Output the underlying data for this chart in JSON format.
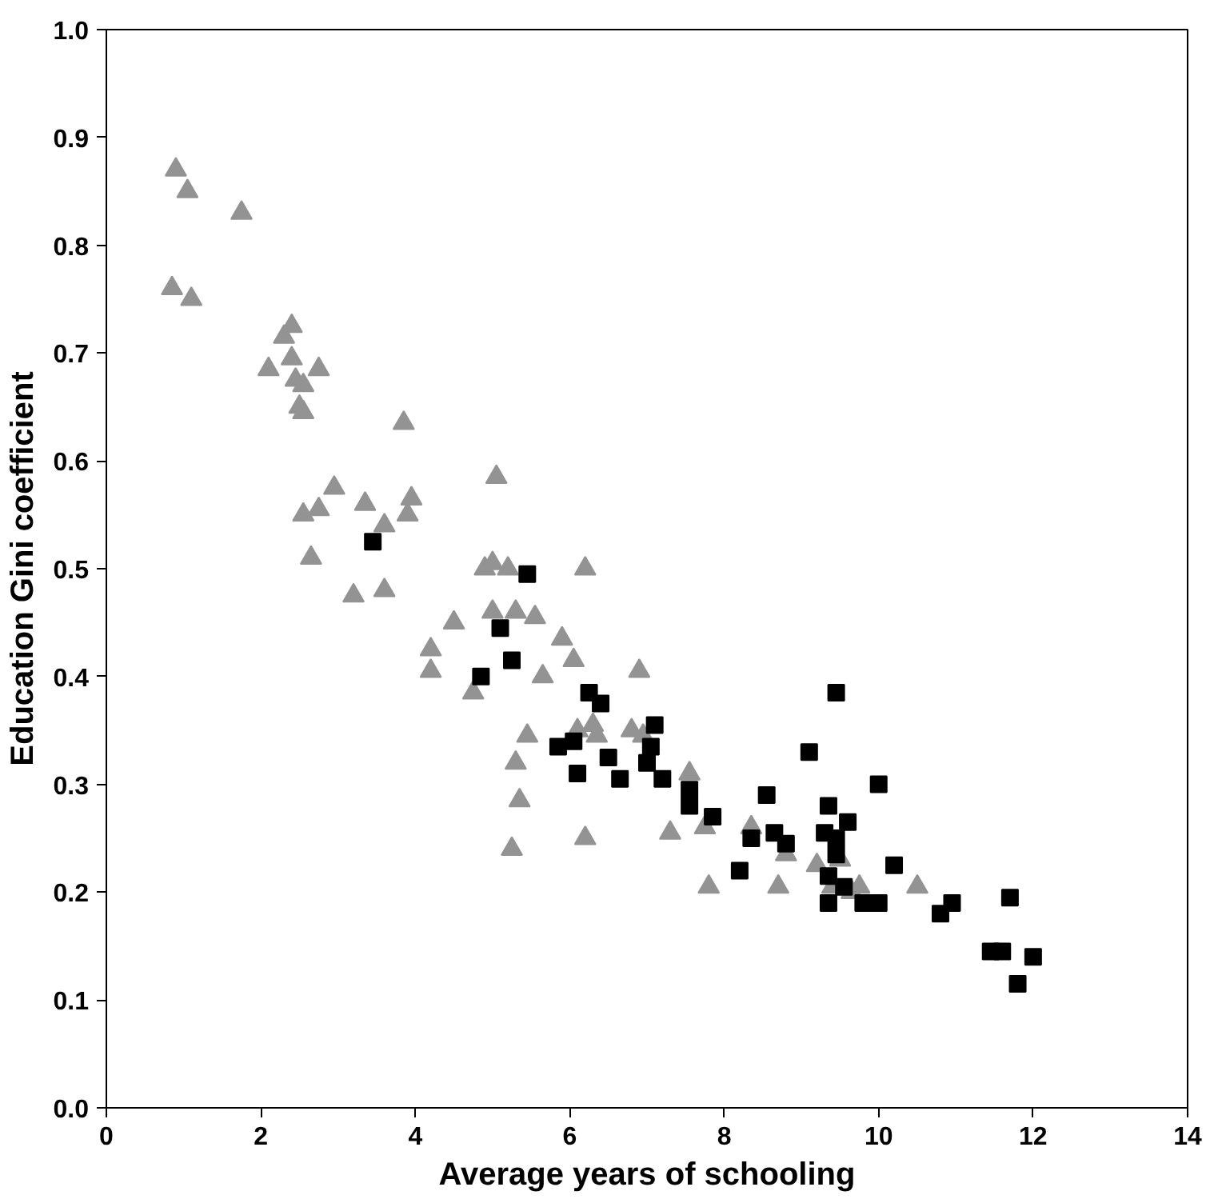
{
  "chart_data": {
    "type": "scatter",
    "xlabel": "Average years of schooling",
    "ylabel": "Education Gini coefficient",
    "xlim": [
      0,
      14
    ],
    "ylim": [
      0,
      1.0
    ],
    "xticks": [
      0,
      2,
      4,
      6,
      8,
      10,
      12,
      14
    ],
    "yticks": [
      {
        "value": 0,
        "label": "0.0"
      },
      0.1,
      0.2,
      0.3,
      0.4,
      0.5,
      0.6,
      0.7,
      0.8,
      0.9,
      {
        "value": 1.0,
        "label": "1.0"
      }
    ],
    "grid": false,
    "series": [
      {
        "color": "#939393",
        "marker": "triangle",
        "x": [
          0.9,
          1.05,
          1.75,
          0.85,
          1.1,
          2.1,
          2.3,
          2.4,
          2.4,
          2.45,
          2.55,
          2.55,
          2.5,
          2.55,
          2.75,
          2.75,
          2.65,
          2.95,
          3.2,
          3.35,
          3.6,
          3.6,
          3.85,
          3.9,
          3.95,
          4.2,
          4.2,
          4.5,
          4.75,
          4.9,
          5.0,
          5.05,
          5.0,
          5.2,
          5.3,
          5.3,
          5.35,
          5.25,
          5.45,
          5.55,
          5.65,
          5.9,
          6.05,
          6.1,
          6.2,
          6.2,
          6.3,
          6.35,
          6.8,
          6.9,
          6.95,
          7.3,
          7.55,
          7.8,
          7.75,
          8.35,
          8.7,
          8.8,
          9.2,
          9.4,
          9.5,
          9.75,
          10.5,
          9.65
        ],
        "values": [
          0.87,
          0.85,
          0.83,
          0.76,
          0.75,
          0.685,
          0.715,
          0.725,
          0.695,
          0.675,
          0.67,
          0.645,
          0.65,
          0.55,
          0.685,
          0.555,
          0.51,
          0.575,
          0.475,
          0.56,
          0.54,
          0.48,
          0.635,
          0.55,
          0.565,
          0.425,
          0.405,
          0.45,
          0.385,
          0.5,
          0.505,
          0.585,
          0.46,
          0.5,
          0.46,
          0.32,
          0.285,
          0.24,
          0.345,
          0.455,
          0.4,
          0.435,
          0.415,
          0.35,
          0.5,
          0.25,
          0.355,
          0.345,
          0.35,
          0.405,
          0.345,
          0.255,
          0.31,
          0.205,
          0.26,
          0.26,
          0.205,
          0.235,
          0.225,
          0.205,
          0.23,
          0.205,
          0.205,
          0.2
        ]
      },
      {
        "color": "#000000",
        "marker": "square",
        "x": [
          3.45,
          4.85,
          5.1,
          5.25,
          5.45,
          5.85,
          6.05,
          6.1,
          6.25,
          6.4,
          6.5,
          6.65,
          7.0,
          7.05,
          7.1,
          7.2,
          7.55,
          7.55,
          7.85,
          8.2,
          8.35,
          8.55,
          8.65,
          8.8,
          9.1,
          9.3,
          9.35,
          9.35,
          9.35,
          9.45,
          9.45,
          9.45,
          9.55,
          9.6,
          9.8,
          10.0,
          10.0,
          10.2,
          10.8,
          10.95,
          11.45,
          11.6,
          11.7,
          11.8,
          12.0
        ],
        "values": [
          0.525,
          0.4,
          0.445,
          0.415,
          0.495,
          0.335,
          0.34,
          0.31,
          0.385,
          0.375,
          0.325,
          0.305,
          0.32,
          0.335,
          0.355,
          0.305,
          0.295,
          0.28,
          0.27,
          0.22,
          0.25,
          0.29,
          0.255,
          0.245,
          0.33,
          0.255,
          0.28,
          0.215,
          0.19,
          0.385,
          0.25,
          0.235,
          0.205,
          0.265,
          0.19,
          0.3,
          0.19,
          0.225,
          0.18,
          0.19,
          0.145,
          0.145,
          0.195,
          0.115,
          0.14
        ]
      }
    ]
  }
}
